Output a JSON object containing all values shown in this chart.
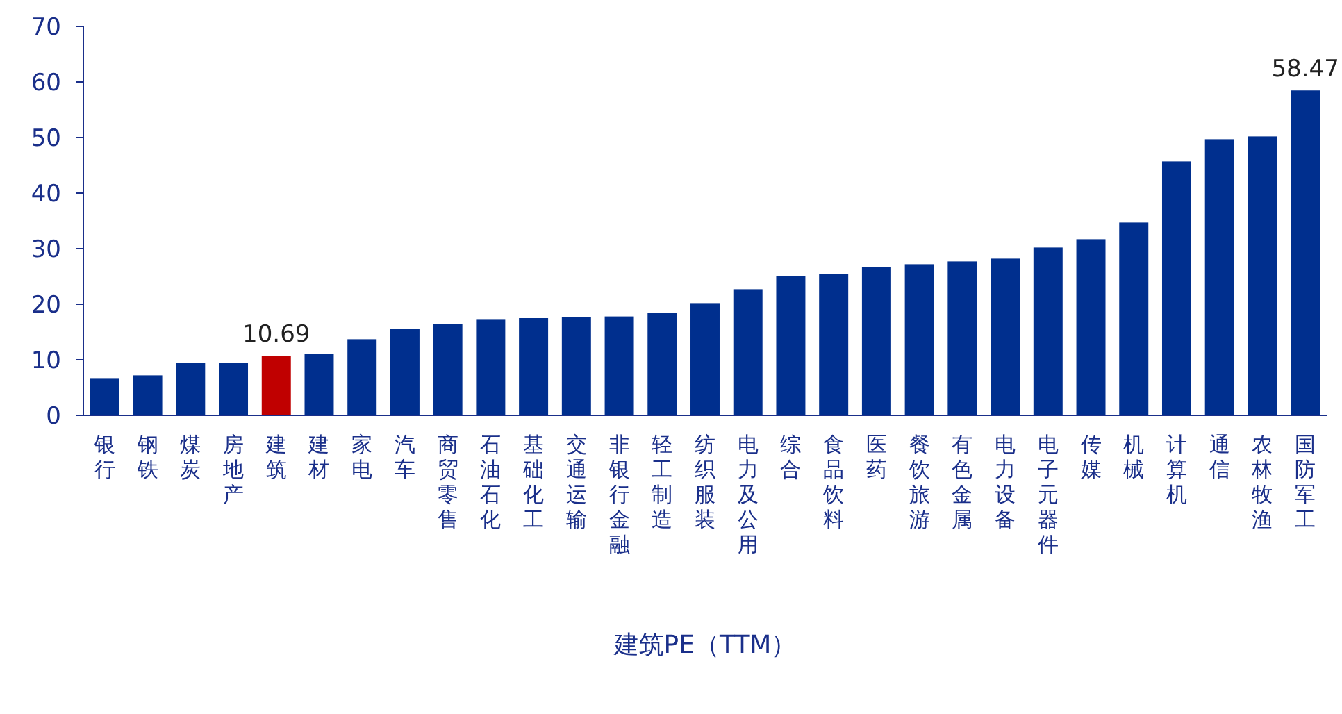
{
  "chart_data": {
    "type": "bar",
    "xlabel": "建筑PE（TTM）",
    "categories": [
      "银行",
      "钢铁",
      "煤炭",
      "房地产",
      "建筑",
      "建材",
      "家电",
      "汽车",
      "商贸零售",
      "石油石化",
      "基础化工",
      "交通运输",
      "非银行金融",
      "轻工制造",
      "纺织服装",
      "电力及公用",
      "综合",
      "食品饮料",
      "医药",
      "餐饮旅游",
      "有色金属",
      "电力设备",
      "电子元器件",
      "传媒",
      "机械",
      "计算机",
      "通信",
      "农林牧渔",
      "国防军工"
    ],
    "values": [
      6.7,
      7.2,
      9.5,
      9.5,
      10.69,
      11.0,
      13.7,
      15.5,
      16.5,
      17.2,
      17.5,
      17.7,
      17.8,
      18.5,
      20.2,
      22.7,
      25.0,
      25.5,
      26.7,
      27.2,
      27.7,
      28.2,
      30.2,
      31.7,
      34.7,
      45.7,
      49.7,
      50.2,
      58.47
    ],
    "colors": [
      "#002f8e",
      "#002f8e",
      "#002f8e",
      "#002f8e",
      "#c00000",
      "#002f8e",
      "#002f8e",
      "#002f8e",
      "#002f8e",
      "#002f8e",
      "#002f8e",
      "#002f8e",
      "#002f8e",
      "#002f8e",
      "#002f8e",
      "#002f8e",
      "#002f8e",
      "#002f8e",
      "#002f8e",
      "#002f8e",
      "#002f8e",
      "#002f8e",
      "#002f8e",
      "#002f8e",
      "#002f8e",
      "#002f8e",
      "#002f8e",
      "#002f8e",
      "#002f8e"
    ],
    "value_labels": [
      null,
      null,
      null,
      null,
      "10.69",
      null,
      null,
      null,
      null,
      null,
      null,
      null,
      null,
      null,
      null,
      null,
      null,
      null,
      null,
      null,
      null,
      null,
      null,
      null,
      null,
      null,
      null,
      null,
      "58.47"
    ],
    "ylim": [
      0,
      70
    ],
    "yticks": [
      0,
      10,
      20,
      30,
      40,
      50,
      60,
      70
    ],
    "grid": false
  }
}
